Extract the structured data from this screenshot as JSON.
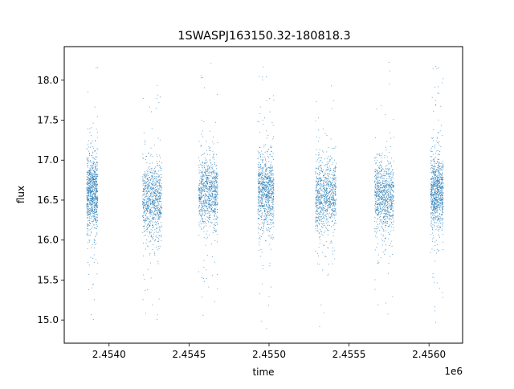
{
  "chart_data": {
    "type": "scatter",
    "title": "1SWASPJ163150.32-180818.3",
    "xlabel": "time",
    "ylabel": "flux",
    "x_offset_label": "1e6",
    "xlim": [
      2.45372,
      2.45621
    ],
    "ylim": [
      14.71,
      18.42
    ],
    "x_ticks": [
      2.454,
      2.4545,
      2.455,
      2.4555,
      2.456
    ],
    "x_tick_labels": [
      "2.4540",
      "2.4545",
      "2.4550",
      "2.4555",
      "2.4560"
    ],
    "y_ticks": [
      15.0,
      15.5,
      16.0,
      16.5,
      17.0,
      17.5,
      18.0
    ],
    "y_tick_labels": [
      "15.0",
      "15.5",
      "16.0",
      "16.5",
      "17.0",
      "17.5",
      "18.0"
    ],
    "grid": false,
    "marker_color": "#1f77b4",
    "series": [
      {
        "values_summary": "seven observing seasons of dense photometry",
        "clusters": [
          {
            "x_start": 2.45386,
            "x_end": 2.45393,
            "flux_median": 16.6,
            "flux_min": 14.93,
            "flux_max": 18.2
          },
          {
            "x_start": 2.45421,
            "x_end": 2.45433,
            "flux_median": 16.5,
            "flux_min": 14.88,
            "flux_max": 17.95
          },
          {
            "x_start": 2.45456,
            "x_end": 2.45468,
            "flux_median": 16.6,
            "flux_min": 14.92,
            "flux_max": 18.25
          },
          {
            "x_start": 2.45493,
            "x_end": 2.45503,
            "flux_median": 16.6,
            "flux_min": 14.88,
            "flux_max": 18.25
          },
          {
            "x_start": 2.45529,
            "x_end": 2.45542,
            "flux_median": 16.55,
            "flux_min": 14.85,
            "flux_max": 18.1
          },
          {
            "x_start": 2.45566,
            "x_end": 2.45578,
            "flux_median": 16.55,
            "flux_min": 14.92,
            "flux_max": 18.25
          },
          {
            "x_start": 2.45601,
            "x_end": 2.45609,
            "flux_median": 16.6,
            "flux_min": 14.87,
            "flux_max": 18.2
          }
        ]
      }
    ]
  }
}
